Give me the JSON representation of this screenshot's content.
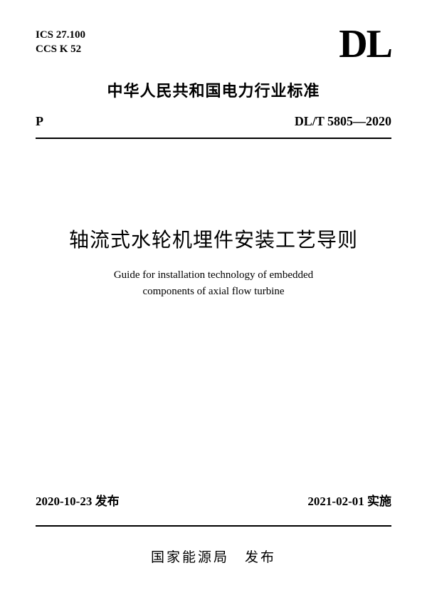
{
  "header": {
    "ics_code": "ICS 27.100",
    "ccs_code": "CCS K 52",
    "logo": "DL",
    "org_title": "中华人民共和国电力行业标准",
    "left_code": "P",
    "standard_number": "DL/T 5805—2020"
  },
  "title": {
    "main_cn": "轴流式水轮机埋件安装工艺导则",
    "sub_en_line1": "Guide for installation technology of embedded",
    "sub_en_line2": "components of axial flow turbine"
  },
  "dates": {
    "publish": "2020-10-23 发布",
    "effective": "2021-02-01 实施"
  },
  "publisher": "国家能源局　发布"
}
